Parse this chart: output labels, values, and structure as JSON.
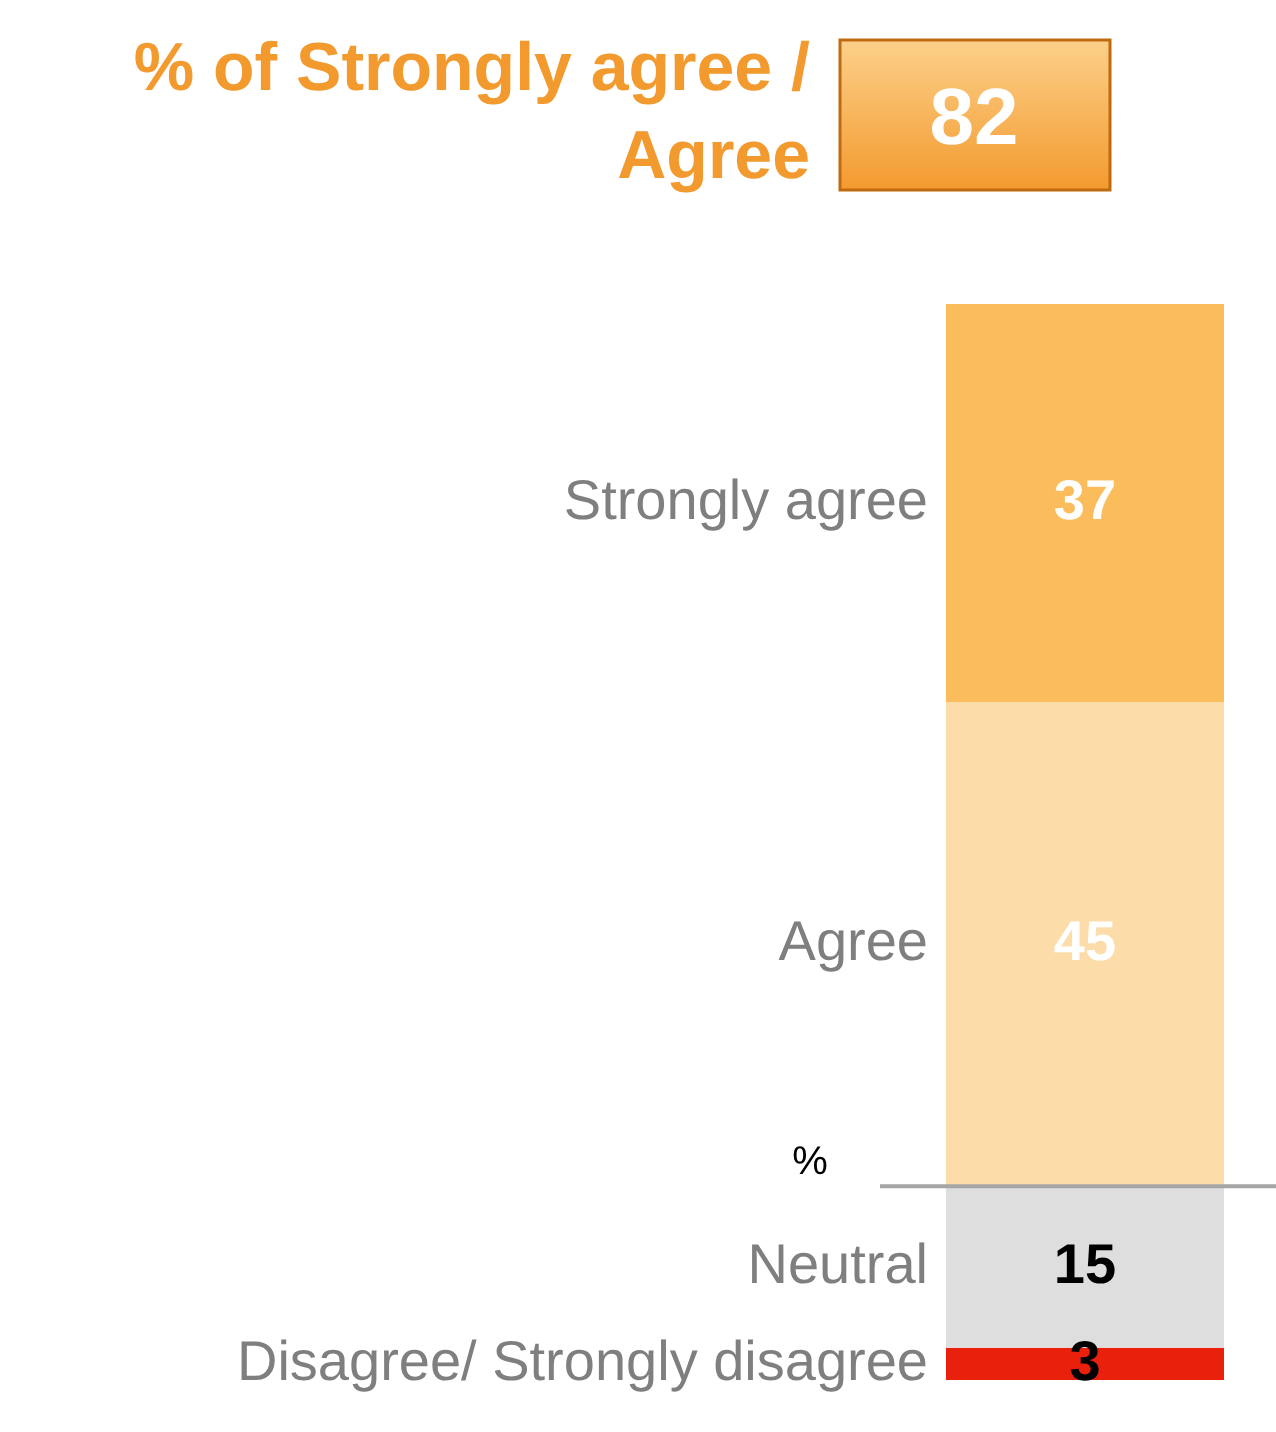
{
  "chart_data": {
    "type": "bar",
    "stacked": true,
    "title": "% of Strongly agree / Agree",
    "categories": [
      null
    ],
    "series": [
      {
        "name": "Disagree/ Strongly disagree",
        "color": "#e8200c",
        "values": [
          3
        ]
      },
      {
        "name": "Neutral",
        "color": "#dedede",
        "values": [
          15
        ]
      },
      {
        "name": "Agree",
        "color": "#fcdca8",
        "values": [
          45
        ]
      },
      {
        "name": "Strongly agree",
        "color": "#fbbc5c",
        "values": [
          37
        ]
      }
    ],
    "data_labels": true,
    "ref_lines": [
      {
        "axis": "y",
        "value": 18,
        "label": "%"
      }
    ],
    "annotations": [
      "82"
    ],
    "tick_labels": false
  }
}
